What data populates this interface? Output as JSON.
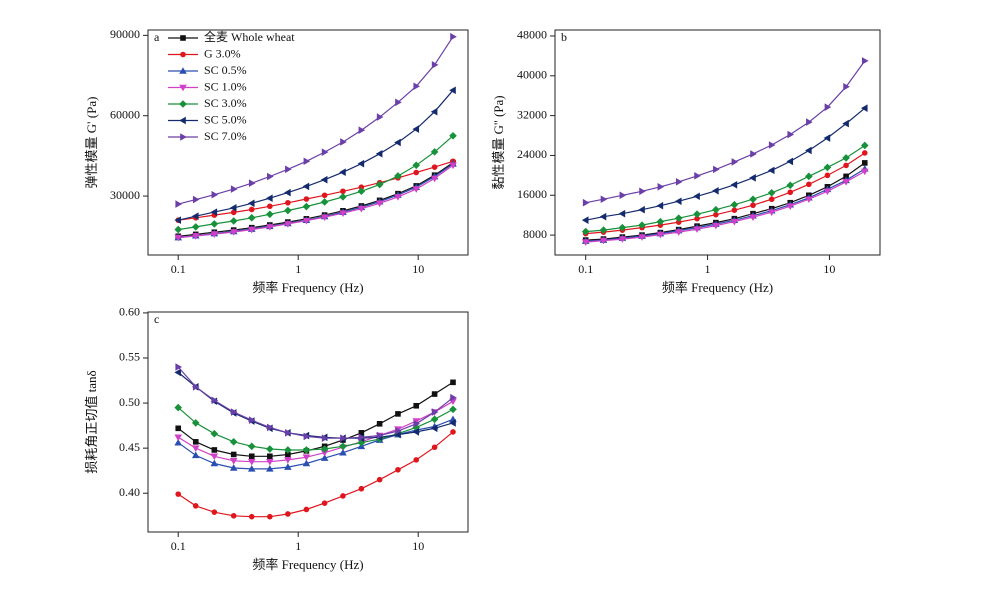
{
  "chart_data": [
    {
      "type": "line",
      "label": "a",
      "xlabel": "频率 Frequency (Hz)",
      "ylabel": "弹性模量 G' (Pa)",
      "xscale": "log",
      "x": [
        0.1,
        0.14,
        0.2,
        0.29,
        0.41,
        0.58,
        0.82,
        1.17,
        1.66,
        2.36,
        3.36,
        4.77,
        6.78,
        9.63,
        13.7,
        19.5
      ],
      "xlim": [
        0.056,
        26
      ],
      "xticks": [
        0.1,
        1,
        10
      ],
      "ylim": [
        8000,
        92000
      ],
      "yticks": [
        30000,
        60000,
        90000
      ],
      "legend": "upper left",
      "series": [
        {
          "name": "全麦 Whole wheat",
          "color": "#111111",
          "marker": "square",
          "values": [
            15000,
            15700,
            16500,
            17300,
            18200,
            19200,
            20300,
            21500,
            22900,
            24500,
            26300,
            28400,
            30900,
            33800,
            37800,
            42500
          ]
        },
        {
          "name": "G 3.0%",
          "color": "#e0161e",
          "marker": "circle",
          "values": [
            21000,
            21900,
            22900,
            23900,
            25000,
            26200,
            27500,
            28900,
            30300,
            31800,
            33300,
            35000,
            36800,
            38800,
            40800,
            43000
          ]
        },
        {
          "name": "SC 0.5%",
          "color": "#2a4fb0",
          "marker": "triangle-up",
          "values": [
            14500,
            15200,
            16000,
            16800,
            17700,
            18700,
            19800,
            21000,
            22400,
            24000,
            25800,
            27900,
            30400,
            33300,
            37300,
            42000
          ]
        },
        {
          "name": "SC 1.0%",
          "color": "#d040c8",
          "marker": "triangle-down",
          "values": [
            14500,
            15100,
            15800,
            16600,
            17500,
            18500,
            19600,
            20800,
            22100,
            23600,
            25300,
            27300,
            29700,
            32600,
            36600,
            41500
          ]
        },
        {
          "name": "SC 3.0%",
          "color": "#17913a",
          "marker": "diamond",
          "values": [
            17500,
            18500,
            19600,
            20700,
            21900,
            23200,
            24600,
            26100,
            27800,
            29700,
            31800,
            34300,
            37500,
            41500,
            46500,
            52500
          ]
        },
        {
          "name": "SC 5.0%",
          "color": "#142a6e",
          "marker": "triangle-left",
          "values": [
            21000,
            22500,
            24000,
            25600,
            27300,
            29200,
            31300,
            33600,
            36100,
            38900,
            42100,
            45800,
            50000,
            55000,
            61500,
            69500
          ]
        },
        {
          "name": "SC 7.0%",
          "color": "#6a3fa8",
          "marker": "triangle-right",
          "values": [
            27000,
            28700,
            30500,
            32600,
            34800,
            37300,
            40000,
            43000,
            46400,
            50200,
            54600,
            59500,
            65000,
            71000,
            79000,
            89500
          ]
        }
      ]
    },
    {
      "type": "line",
      "label": "b",
      "xlabel": "频率 Frequency (Hz)",
      "ylabel": "黏性模量 G'' (Pa)",
      "xscale": "log",
      "x": [
        0.1,
        0.14,
        0.2,
        0.29,
        0.41,
        0.58,
        0.82,
        1.17,
        1.66,
        2.36,
        3.36,
        4.77,
        6.78,
        9.63,
        13.7,
        19.5
      ],
      "xlim": [
        0.056,
        26
      ],
      "xticks": [
        0.1,
        1,
        10
      ],
      "ylim": [
        4000,
        49200
      ],
      "yticks": [
        8000,
        16000,
        24000,
        32000,
        40000,
        48000
      ],
      "series": [
        {
          "color": "#111111",
          "marker": "square",
          "values": [
            7000,
            7200,
            7600,
            8000,
            8500,
            9100,
            9800,
            10500,
            11300,
            12300,
            13300,
            14500,
            16000,
            17700,
            19800,
            22500
          ]
        },
        {
          "color": "#e0161e",
          "marker": "circle",
          "values": [
            8300,
            8600,
            9000,
            9500,
            10000,
            10600,
            11300,
            12100,
            13000,
            14000,
            15200,
            16600,
            18200,
            20000,
            22000,
            24500
          ]
        },
        {
          "color": "#2a4fb0",
          "marker": "triangle-up",
          "values": [
            6800,
            7000,
            7400,
            7800,
            8300,
            8900,
            9500,
            10200,
            11000,
            11900,
            12900,
            14100,
            15500,
            17200,
            19000,
            21300
          ]
        },
        {
          "color": "#d040c8",
          "marker": "triangle-down",
          "values": [
            6600,
            6900,
            7200,
            7600,
            8100,
            8600,
            9200,
            9900,
            10700,
            11600,
            12600,
            13800,
            15200,
            16800,
            18700,
            20800
          ]
        },
        {
          "color": "#17913a",
          "marker": "diamond",
          "values": [
            8700,
            9000,
            9500,
            10000,
            10700,
            11400,
            12200,
            13100,
            14100,
            15200,
            16500,
            18000,
            19800,
            21600,
            23500,
            26000
          ]
        },
        {
          "color": "#142a6e",
          "marker": "triangle-left",
          "values": [
            11000,
            11700,
            12300,
            13100,
            13900,
            14800,
            15800,
            16900,
            18100,
            19500,
            21000,
            22800,
            25000,
            27500,
            30400,
            33500
          ]
        },
        {
          "color": "#6a3fa8",
          "marker": "triangle-right",
          "values": [
            14500,
            15200,
            16000,
            16800,
            17700,
            18700,
            19900,
            21200,
            22700,
            24300,
            26100,
            28200,
            30700,
            33700,
            37800,
            43000
          ]
        }
      ]
    },
    {
      "type": "line",
      "label": "c",
      "xlabel": "频率 Frequency (Hz)",
      "ylabel": "损耗角正切值 tanδ",
      "xscale": "log",
      "x": [
        0.1,
        0.14,
        0.2,
        0.29,
        0.41,
        0.58,
        0.82,
        1.17,
        1.66,
        2.36,
        3.36,
        4.77,
        6.78,
        9.63,
        13.7,
        19.5
      ],
      "xlim": [
        0.056,
        26
      ],
      "xticks": [
        0.1,
        1,
        10
      ],
      "ylim": [
        0.357,
        0.601
      ],
      "yticks": [
        {
          "value": 0.4,
          "label": "0.40"
        },
        0.45,
        {
          "value": 0.5,
          "label": "0.50"
        },
        0.55,
        {
          "value": 0.6,
          "label": "0.60"
        }
      ],
      "series": [
        {
          "color": "#111111",
          "marker": "square",
          "values": [
            0.472,
            0.457,
            0.448,
            0.443,
            0.441,
            0.441,
            0.443,
            0.447,
            0.452,
            0.459,
            0.467,
            0.477,
            0.488,
            0.497,
            0.51,
            0.523
          ]
        },
        {
          "color": "#e0161e",
          "marker": "circle",
          "values": [
            0.399,
            0.386,
            0.379,
            0.375,
            0.374,
            0.374,
            0.377,
            0.382,
            0.389,
            0.397,
            0.405,
            0.415,
            0.426,
            0.437,
            0.451,
            0.468
          ]
        },
        {
          "color": "#2a4fb0",
          "marker": "triangle-up",
          "values": [
            0.456,
            0.442,
            0.433,
            0.428,
            0.427,
            0.427,
            0.429,
            0.433,
            0.439,
            0.445,
            0.452,
            0.459,
            0.465,
            0.47,
            0.474,
            0.482
          ]
        },
        {
          "color": "#d040c8",
          "marker": "triangle-down",
          "values": [
            0.462,
            0.45,
            0.441,
            0.436,
            0.435,
            0.435,
            0.437,
            0.44,
            0.445,
            0.451,
            0.457,
            0.464,
            0.471,
            0.48,
            0.49,
            0.502
          ]
        },
        {
          "color": "#17913a",
          "marker": "diamond",
          "values": [
            0.495,
            0.478,
            0.466,
            0.457,
            0.452,
            0.449,
            0.448,
            0.448,
            0.449,
            0.452,
            0.456,
            0.46,
            0.466,
            0.473,
            0.482,
            0.493
          ]
        },
        {
          "color": "#142a6e",
          "marker": "triangle-left",
          "values": [
            0.534,
            0.518,
            0.502,
            0.489,
            0.48,
            0.472,
            0.467,
            0.464,
            0.462,
            0.461,
            0.461,
            0.462,
            0.465,
            0.468,
            0.472,
            0.478
          ]
        },
        {
          "color": "#6a3fa8",
          "marker": "triangle-right",
          "values": [
            0.54,
            0.518,
            0.503,
            0.49,
            0.481,
            0.473,
            0.467,
            0.463,
            0.461,
            0.461,
            0.462,
            0.464,
            0.469,
            0.477,
            0.49,
            0.506
          ]
        }
      ]
    }
  ]
}
